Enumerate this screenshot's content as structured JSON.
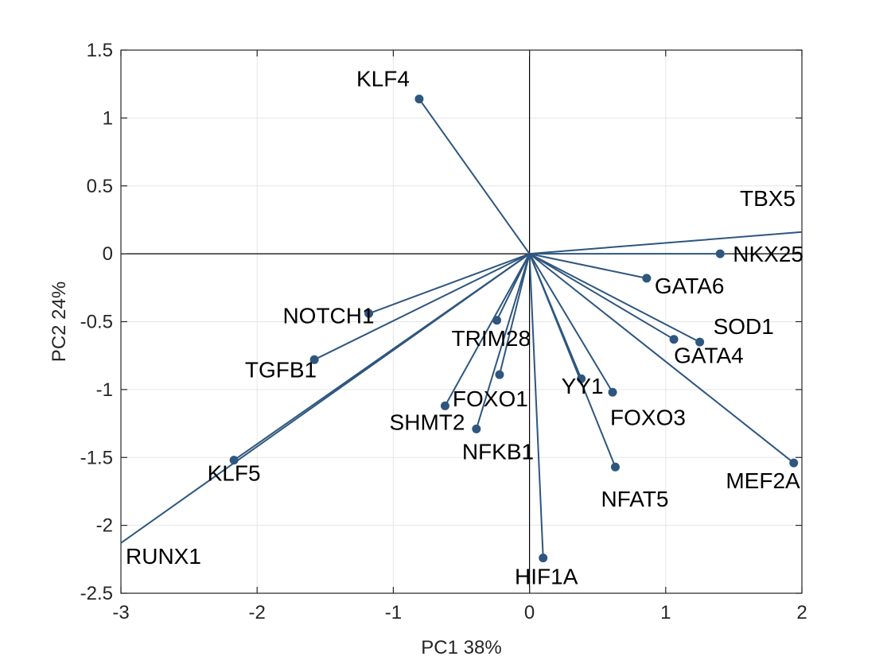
{
  "chart_data": {
    "type": "biplot",
    "title": "",
    "xlabel": "PC1 38%",
    "ylabel": "PC2 24%",
    "xlim": [
      -3,
      2
    ],
    "ylim": [
      -2.5,
      1.5
    ],
    "xticks": [
      -3,
      -2,
      -1,
      0,
      1,
      2
    ],
    "yticks": [
      -2.5,
      -2,
      -1.5,
      -1,
      -0.5,
      0,
      0.5,
      1,
      1.5
    ],
    "xtick_labels": [
      "-3",
      "-2",
      "-1",
      "0",
      "1",
      "2"
    ],
    "ytick_labels": [
      "-2.5",
      "-2",
      "-1.5",
      "-1",
      "-0.5",
      "0",
      "0.5",
      "1",
      "1.5"
    ],
    "grid": true,
    "color": "#2e567e",
    "vectors": [
      {
        "label": "KLF4",
        "x": -0.81,
        "y": 1.14,
        "marker": true
      },
      {
        "label": "TBX5",
        "x": 2.0,
        "y": 0.16,
        "marker": false
      },
      {
        "label": "NKX25",
        "x": 1.4,
        "y": 0.0,
        "marker": true
      },
      {
        "label": "GATA6",
        "x": 0.86,
        "y": -0.18,
        "marker": true
      },
      {
        "label": "SOD1",
        "x": 1.25,
        "y": -0.65,
        "marker": true
      },
      {
        "label": "GATA4",
        "x": 1.06,
        "y": -0.63,
        "marker": true
      },
      {
        "label": "NOTCH1",
        "x": -1.18,
        "y": -0.44,
        "marker": true
      },
      {
        "label": "TRIM28",
        "x": -0.24,
        "y": -0.49,
        "marker": true
      },
      {
        "label": "TGFB1",
        "x": -1.58,
        "y": -0.78,
        "marker": true
      },
      {
        "label": "FOXO1",
        "x": -0.22,
        "y": -0.89,
        "marker": true
      },
      {
        "label": "SHMT2",
        "x": -0.62,
        "y": -1.12,
        "marker": true
      },
      {
        "label": "NFKB1",
        "x": -0.39,
        "y": -1.29,
        "marker": true
      },
      {
        "label": "YY1",
        "x": 0.38,
        "y": -0.92,
        "marker": true
      },
      {
        "label": "FOXO3",
        "x": 0.61,
        "y": -1.02,
        "marker": true
      },
      {
        "label": "NFAT5",
        "x": 0.63,
        "y": -1.57,
        "marker": true
      },
      {
        "label": "MEF2A",
        "x": 1.94,
        "y": -1.54,
        "marker": true
      },
      {
        "label": "KLF5",
        "x": -2.17,
        "y": -1.52,
        "marker": true
      },
      {
        "label": "RUNX1",
        "x": -3.0,
        "y": -2.13,
        "marker": false
      },
      {
        "label": "HIF1A",
        "x": 0.1,
        "y": -2.24,
        "marker": true
      }
    ]
  }
}
